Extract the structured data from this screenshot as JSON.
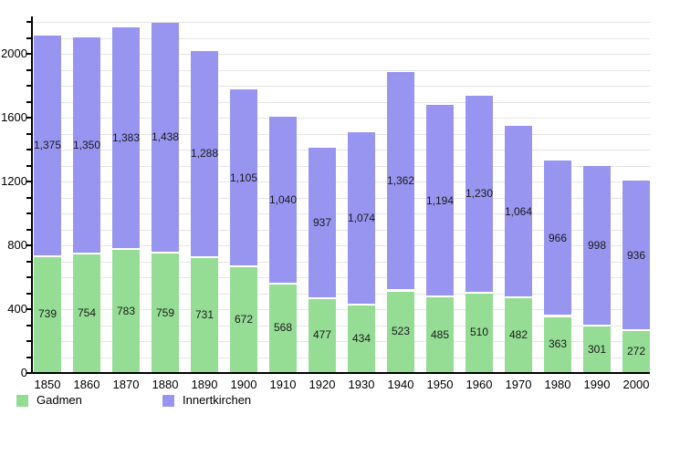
{
  "chart_data": {
    "type": "bar",
    "stacked": true,
    "title": "",
    "xlabel": "",
    "ylabel": "",
    "categories": [
      "1850",
      "1860",
      "1870",
      "1880",
      "1890",
      "1900",
      "1910",
      "1920",
      "1930",
      "1940",
      "1950",
      "1960",
      "1970",
      "1980",
      "1990",
      "2000"
    ],
    "series": [
      {
        "name": "Gadmen",
        "color": "#95dd95",
        "values": [
          739,
          754,
          783,
          759,
          731,
          672,
          568,
          477,
          434,
          523,
          485,
          510,
          482,
          363,
          301,
          272
        ],
        "display_labels": [
          "739",
          "754",
          "783",
          "759",
          "731",
          "672",
          "568",
          "477",
          "434",
          "523",
          "485",
          "510",
          "482",
          "363",
          "301",
          "272"
        ]
      },
      {
        "name": "Innertkirchen",
        "color": "#9795f0",
        "values": [
          1375,
          1350,
          1383,
          1438,
          1288,
          1105,
          1040,
          937,
          1074,
          1362,
          1194,
          1230,
          1064,
          966,
          998,
          936
        ],
        "display_labels": [
          "1,375",
          "1,350",
          "1,383",
          "1,438",
          "1,288",
          "1,105",
          "1,040",
          "937",
          "1,074",
          "1,362",
          "1,194",
          "1,230",
          "1,064",
          "966",
          "998",
          "936"
        ]
      }
    ],
    "ylim": [
      0,
      2234
    ],
    "yticks_labeled": [
      "0",
      "400",
      "800",
      "1200",
      "1600",
      "2000"
    ],
    "ytick_labeled_values": [
      0,
      400,
      800,
      1200,
      1600,
      2000
    ],
    "ytick_minor_interval": 100,
    "ytick_max": 2200,
    "grid": true,
    "grid_color": "#e5e5e5",
    "axis_color": "#000000",
    "value_label_color": "#1a1a1a",
    "background_color": "#ffffff",
    "legend_position": "bottom-left"
  },
  "legend": {
    "items": [
      {
        "label": "Gadmen",
        "color": "#95dd95"
      },
      {
        "label": "Innertkirchen",
        "color": "#9795f0"
      }
    ]
  }
}
